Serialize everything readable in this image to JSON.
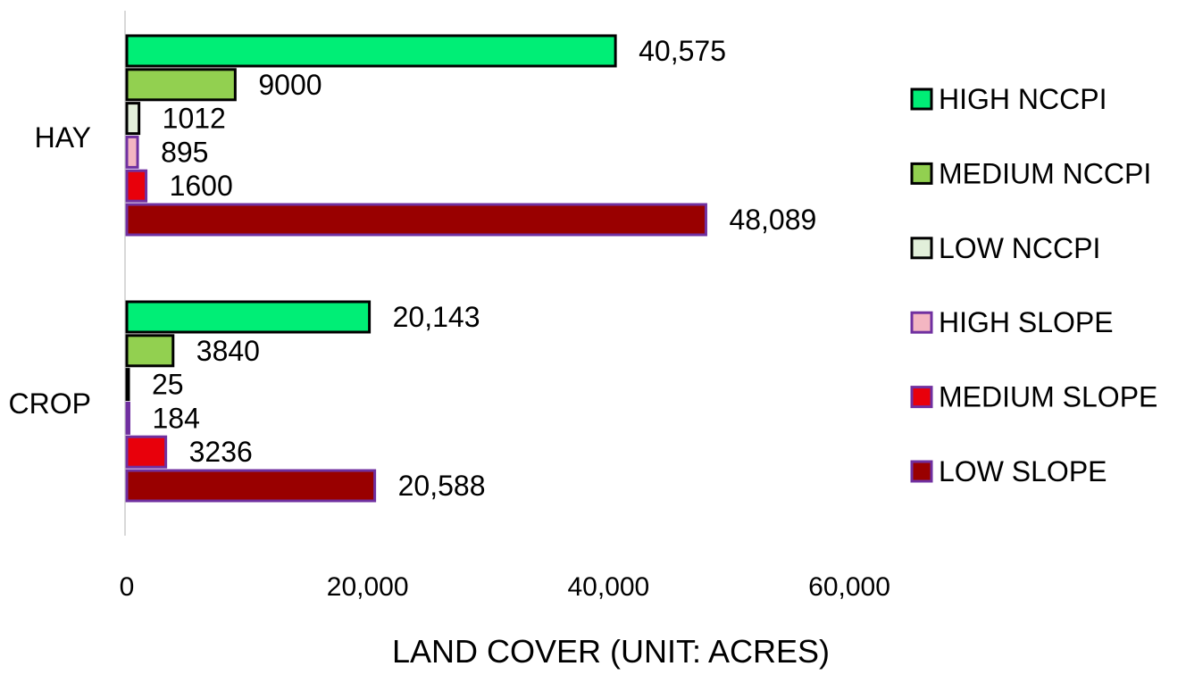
{
  "chart_data": {
    "type": "bar",
    "orientation": "horizontal",
    "categories": [
      "HAY",
      "CROP"
    ],
    "series": [
      {
        "name": "HIGH NCCPI",
        "values": [
          40575,
          20143
        ],
        "labels": [
          "40,575",
          "20,143"
        ],
        "fill": "#00ee76",
        "stroke": "#000000"
      },
      {
        "name": "MEDIUM NCCPI",
        "values": [
          9000,
          3840
        ],
        "labels": [
          "9000",
          "3840"
        ],
        "fill": "#92d050",
        "stroke": "#000000"
      },
      {
        "name": "LOW NCCPI",
        "values": [
          1012,
          25
        ],
        "labels": [
          "1012",
          "25"
        ],
        "fill": "#e2efda",
        "stroke": "#000000"
      },
      {
        "name": "HIGH SLOPE",
        "values": [
          895,
          184
        ],
        "labels": [
          "895",
          "184"
        ],
        "fill": "#f4b6c2",
        "stroke": "#7030a0"
      },
      {
        "name": "MEDIUM SLOPE",
        "values": [
          1600,
          3236
        ],
        "labels": [
          "1600",
          "3236"
        ],
        "fill": "#e8000b",
        "stroke": "#7030a0"
      },
      {
        "name": "LOW SLOPE",
        "values": [
          48089,
          20588
        ],
        "labels": [
          "48,089",
          "20,588"
        ],
        "fill": "#990000",
        "stroke": "#7030a0"
      }
    ],
    "xlabel": "LAND COVER (UNIT: ACRES)",
    "ylabel": "",
    "title": "",
    "xlim": [
      0,
      65000
    ],
    "xticks": [
      0,
      20000,
      40000,
      60000
    ],
    "xtick_labels": [
      "0",
      "20,000",
      "40,000",
      "60,000"
    ],
    "grid": false,
    "legend_position": "right"
  }
}
